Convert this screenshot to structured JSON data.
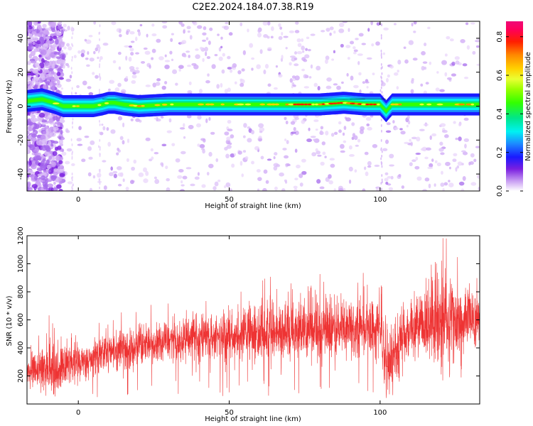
{
  "title": "C2E2.2024.184.07.38.R19",
  "chart_data": [
    {
      "type": "heatmap",
      "xlabel": "Height of straight line (km)",
      "ylabel": "Frequency (Hz)",
      "xlim": [
        -17,
        133
      ],
      "ylim": [
        -50,
        50
      ],
      "xticks": [
        0,
        50,
        100
      ],
      "yticks": [
        -40,
        -20,
        0,
        20,
        40
      ],
      "colorbar": {
        "label": "Normalized spectral amplitude",
        "range": [
          0.0,
          0.88
        ],
        "ticks": [
          "0.0",
          "0.2",
          "0.4",
          "0.6",
          "0.8"
        ],
        "colormap": "gist_ncar-like (white → purple → blue → cyan → green → yellow → orange → red → magenta)"
      },
      "ridge": {
        "description": "Narrow high-amplitude band near 0 Hz across all heights",
        "center_frequency_hz": [
          [
            -17,
            3
          ],
          [
            -12,
            4
          ],
          [
            -8,
            2
          ],
          [
            -5,
            0
          ],
          [
            0,
            0
          ],
          [
            5,
            0
          ],
          [
            8,
            1
          ],
          [
            10,
            2
          ],
          [
            12,
            2
          ],
          [
            15,
            1
          ],
          [
            20,
            0
          ],
          [
            25,
            0.5
          ],
          [
            30,
            1
          ],
          [
            40,
            1
          ],
          [
            50,
            1
          ],
          [
            60,
            1
          ],
          [
            70,
            1
          ],
          [
            80,
            1
          ],
          [
            88,
            2
          ],
          [
            95,
            1
          ],
          [
            100,
            1
          ],
          [
            102,
            -3
          ],
          [
            104,
            1
          ],
          [
            110,
            1
          ],
          [
            120,
            1
          ],
          [
            133,
            1
          ]
        ],
        "peak_amplitude_heights_km": [
          75,
          95
        ]
      }
    },
    {
      "type": "line",
      "xlabel": "Height of straight line (km)",
      "ylabel": "SNR (10 * v/v)",
      "xlim": [
        -17,
        133
      ],
      "ylim": [
        0,
        1200
      ],
      "xticks": [
        0,
        50,
        100
      ],
      "yticks": [
        200,
        400,
        600,
        800,
        1000,
        1200
      ],
      "series": [
        {
          "color": "#ee3333",
          "trend": {
            "x": [
              -17,
              -10,
              0,
              10,
              20,
              30,
              40,
              50,
              60,
              70,
              80,
              90,
              100,
              102,
              110,
              120,
              133
            ],
            "y_mean": [
              250,
              240,
              300,
              370,
              420,
              450,
              470,
              480,
              500,
              520,
              530,
              540,
              550,
              300,
              560,
              580,
              600
            ],
            "y_max": [
              420,
              650,
              560,
              650,
              700,
              750,
              780,
              820,
              900,
              920,
              1000,
              950,
              1000,
              1000,
              950,
              1230,
              1030
            ]
          }
        }
      ]
    }
  ]
}
